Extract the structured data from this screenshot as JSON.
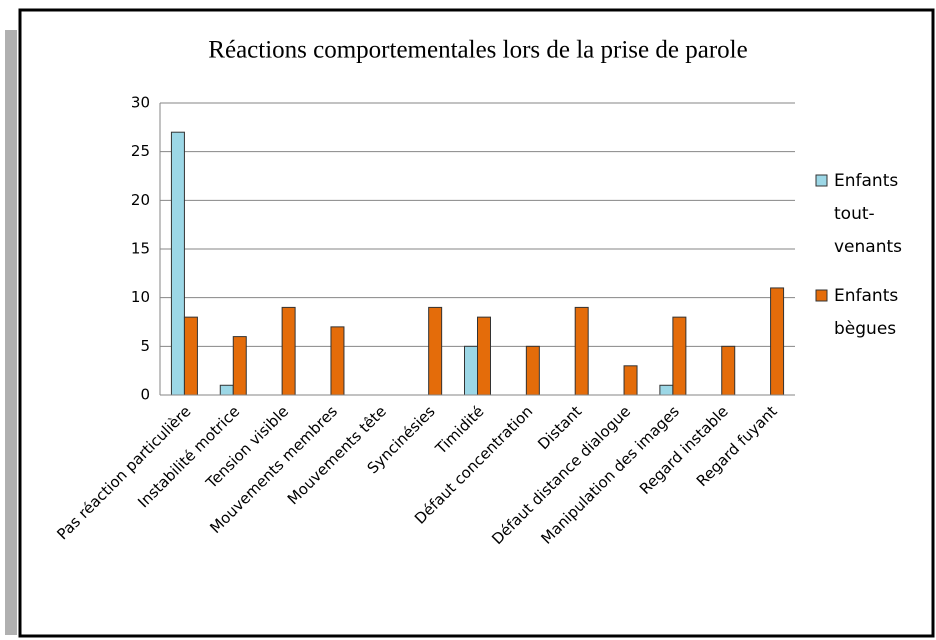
{
  "chart_data": {
    "type": "bar",
    "title": "Réactions comportementales lors de la prise de parole",
    "categories": [
      "Pas réaction particulière",
      "Instabilité motrice",
      "Tension visible",
      "Mouvements membres",
      "Mouvements tête",
      "Syncinésies",
      "Timidité",
      "Défaut concentration",
      "Distant",
      "Défaut distance dialogue",
      "Manipulation des images",
      "Regard instable",
      "Regard fuyant"
    ],
    "series": [
      {
        "name": "Enfants tout-venants",
        "color": "#9cd7e6",
        "values": [
          27,
          1,
          0,
          0,
          0,
          0,
          5,
          0,
          0,
          0,
          1,
          0,
          0
        ]
      },
      {
        "name": "Enfants bègues",
        "color": "#e46c0a",
        "values": [
          8,
          6,
          9,
          7,
          0,
          9,
          8,
          5,
          9,
          3,
          8,
          5,
          11
        ]
      }
    ],
    "ylim": [
      0,
      30
    ],
    "yticks": [
      0,
      5,
      10,
      15,
      20,
      25,
      30
    ],
    "grid": true,
    "legend": "right"
  }
}
